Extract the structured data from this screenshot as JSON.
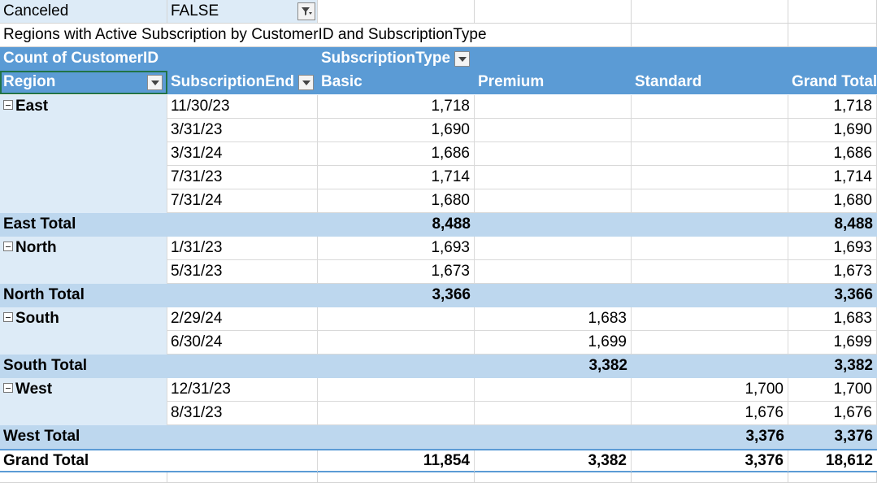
{
  "filter": {
    "label": "Canceled",
    "value": "FALSE"
  },
  "title": "Regions with Active Subscription by CustomerID and SubscriptionType",
  "pivot": {
    "value_field": "Count of CustomerID",
    "column_field": "SubscriptionType",
    "row_field_1": "Region",
    "row_field_2": "SubscriptionEnd",
    "columns": [
      "Basic",
      "Premium",
      "Standard",
      "Grand Total"
    ],
    "groups": [
      {
        "region": "East",
        "rows": [
          {
            "date": "11/30/23",
            "basic": "1,718",
            "premium": "",
            "standard": "",
            "total": "1,718"
          },
          {
            "date": "3/31/23",
            "basic": "1,690",
            "premium": "",
            "standard": "",
            "total": "1,690"
          },
          {
            "date": "3/31/24",
            "basic": "1,686",
            "premium": "",
            "standard": "",
            "total": "1,686"
          },
          {
            "date": "7/31/23",
            "basic": "1,714",
            "premium": "",
            "standard": "",
            "total": "1,714"
          },
          {
            "date": "7/31/24",
            "basic": "1,680",
            "premium": "",
            "standard": "",
            "total": "1,680"
          }
        ],
        "subtotal": {
          "label": "East Total",
          "basic": "8,488",
          "premium": "",
          "standard": "",
          "total": "8,488"
        }
      },
      {
        "region": "North",
        "rows": [
          {
            "date": "1/31/23",
            "basic": "1,693",
            "premium": "",
            "standard": "",
            "total": "1,693"
          },
          {
            "date": "5/31/23",
            "basic": "1,673",
            "premium": "",
            "standard": "",
            "total": "1,673"
          }
        ],
        "subtotal": {
          "label": "North Total",
          "basic": "3,366",
          "premium": "",
          "standard": "",
          "total": "3,366"
        }
      },
      {
        "region": "South",
        "rows": [
          {
            "date": "2/29/24",
            "basic": "",
            "premium": "1,683",
            "standard": "",
            "total": "1,683"
          },
          {
            "date": "6/30/24",
            "basic": "",
            "premium": "1,699",
            "standard": "",
            "total": "1,699"
          }
        ],
        "subtotal": {
          "label": "South Total",
          "basic": "",
          "premium": "3,382",
          "standard": "",
          "total": "3,382"
        }
      },
      {
        "region": "West",
        "rows": [
          {
            "date": "12/31/23",
            "basic": "",
            "premium": "",
            "standard": "1,700",
            "total": "1,700"
          },
          {
            "date": "8/31/23",
            "basic": "",
            "premium": "",
            "standard": "1,676",
            "total": "1,676"
          }
        ],
        "subtotal": {
          "label": "West Total",
          "basic": "",
          "premium": "",
          "standard": "3,376",
          "total": "3,376"
        }
      }
    ],
    "grand_total": {
      "label": "Grand Total",
      "basic": "11,854",
      "premium": "3,382",
      "standard": "3,376",
      "total": "18,612"
    }
  },
  "icons": {
    "dropdown": "chevron-down-icon",
    "filter": "filter-icon",
    "collapse": "collapse-minus-icon"
  },
  "colors": {
    "header": "#5b9bd5",
    "row_label": "#ddebf7",
    "subtotal": "#bdd7ee"
  }
}
